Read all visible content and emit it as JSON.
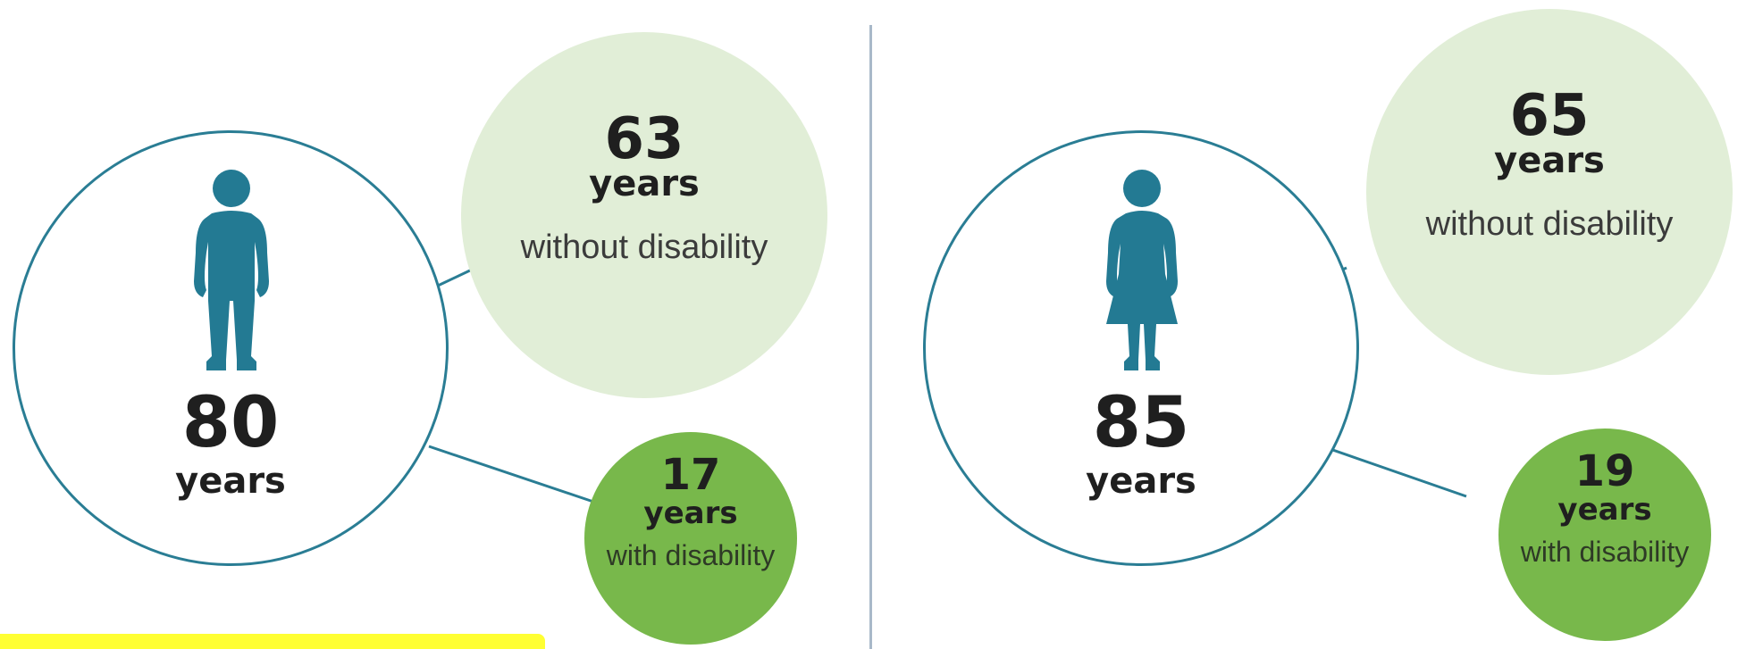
{
  "colors": {
    "outline": "#2a7d94",
    "figure": "#237a93",
    "without_disability_fill": "#e1eed7",
    "with_disability_fill": "#78b84b",
    "divider": "#a9b9c9",
    "highlight": "#ffff33"
  },
  "panels": [
    {
      "icon": "male-figure-icon",
      "total": {
        "value": "80",
        "unit": "years"
      },
      "without_disability": {
        "value": "63",
        "unit": "years",
        "label": "without disability"
      },
      "with_disability": {
        "value": "17",
        "unit": "years",
        "label": "with disability"
      }
    },
    {
      "icon": "female-figure-icon",
      "total": {
        "value": "85",
        "unit": "years"
      },
      "without_disability": {
        "value": "65",
        "unit": "years",
        "label": "without disability"
      },
      "with_disability": {
        "value": "19",
        "unit": "years",
        "label": "with disability"
      }
    }
  ]
}
